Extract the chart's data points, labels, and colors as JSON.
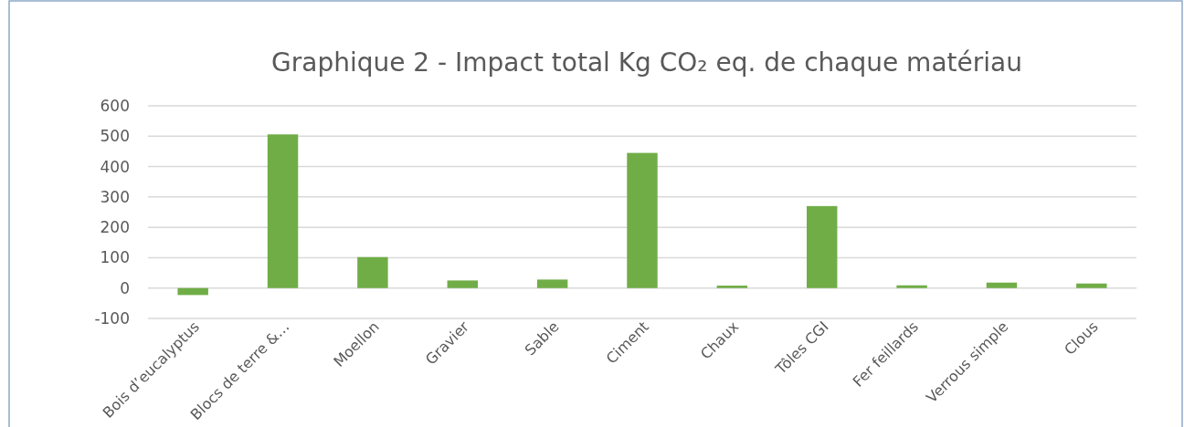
{
  "chart_data": {
    "type": "bar",
    "title": "Graphique 2 - Impact total Kg CO₂  eq. de chaque matériau",
    "categories": [
      "Bois d’eucalyptus",
      "Blocs de terre &…",
      "Moellon",
      "Gravier",
      "Sable",
      "Ciment",
      "Chaux",
      "Tôles CGI",
      "Fer feillards",
      "Verrous simple",
      "Clous"
    ],
    "values": [
      -23,
      506,
      102,
      25,
      28,
      445,
      8,
      270,
      9,
      18,
      15
    ],
    "color": "#70ad47",
    "ylim": [
      -100,
      600
    ],
    "yticks": [
      -100,
      0,
      100,
      200,
      300,
      400,
      500,
      600
    ],
    "grid": "y"
  }
}
